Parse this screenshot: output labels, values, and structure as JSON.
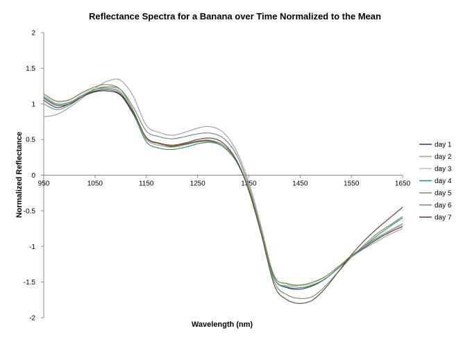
{
  "chart_data": {
    "type": "line",
    "title": "Reflectance Spectra for a Banana over Time Normalized to the Mean",
    "xlabel": "Wavelength (nm)",
    "ylabel": "Normalized Reflectance",
    "xlim": [
      950,
      1650
    ],
    "ylim": [
      -2,
      2
    ],
    "xticks": [
      950,
      1050,
      1150,
      1250,
      1350,
      1450,
      1550,
      1650
    ],
    "yticks": [
      -2,
      -1.5,
      -1,
      -0.5,
      0,
      0.5,
      1,
      1.5,
      2
    ],
    "x_tick_labels": [
      "950",
      "1050",
      "1150",
      "1250",
      "1350",
      "1450",
      "1550",
      "1650"
    ],
    "y_tick_labels": [
      "-2",
      "-1.5",
      "-1",
      "-0.5",
      "0",
      "0.5",
      "1",
      "1.5",
      "2"
    ],
    "grid": false,
    "legend_position": "right",
    "x": [
      950,
      975,
      1000,
      1025,
      1050,
      1075,
      1100,
      1125,
      1150,
      1175,
      1200,
      1225,
      1250,
      1275,
      1300,
      1325,
      1350,
      1375,
      1400,
      1425,
      1450,
      1475,
      1500,
      1525,
      1550,
      1575,
      1600,
      1625,
      1650
    ],
    "series": [
      {
        "name": "day 1",
        "color": "#3a2d5c",
        "values": [
          1.05,
          0.95,
          1.0,
          1.1,
          1.17,
          1.18,
          1.12,
          0.85,
          0.5,
          0.42,
          0.4,
          0.43,
          0.47,
          0.48,
          0.4,
          0.2,
          -0.2,
          -0.8,
          -1.45,
          -1.58,
          -1.6,
          -1.55,
          -1.45,
          -1.3,
          -1.15,
          -1.02,
          -0.9,
          -0.8,
          -0.72
        ]
      },
      {
        "name": "day 2",
        "color": "#9a9ab0",
        "values": [
          0.82,
          0.85,
          0.95,
          1.08,
          1.22,
          1.32,
          1.33,
          1.1,
          0.7,
          0.6,
          0.56,
          0.6,
          0.66,
          0.68,
          0.6,
          0.35,
          -0.1,
          -0.75,
          -1.45,
          -1.55,
          -1.55,
          -1.5,
          -1.42,
          -1.28,
          -1.15,
          -1.03,
          -0.93,
          -0.83,
          -0.75
        ]
      },
      {
        "name": "day 3",
        "color": "#b8c8a8",
        "values": [
          1.12,
          1.03,
          1.05,
          1.15,
          1.22,
          1.24,
          1.17,
          0.88,
          0.5,
          0.42,
          0.39,
          0.42,
          0.46,
          0.47,
          0.4,
          0.22,
          -0.18,
          -0.78,
          -1.42,
          -1.53,
          -1.55,
          -1.52,
          -1.42,
          -1.28,
          -1.13,
          -1.0,
          -0.88,
          -0.78,
          -0.7
        ]
      },
      {
        "name": "day 4",
        "color": "#1f8a7a",
        "values": [
          1.1,
          1.0,
          1.02,
          1.12,
          1.2,
          1.22,
          1.15,
          0.86,
          0.47,
          0.38,
          0.36,
          0.39,
          0.44,
          0.46,
          0.4,
          0.2,
          -0.2,
          -0.8,
          -1.45,
          -1.57,
          -1.58,
          -1.54,
          -1.45,
          -1.3,
          -1.15,
          -1.0,
          -0.85,
          -0.72,
          -0.6
        ]
      },
      {
        "name": "day 5",
        "color": "#8a8a40",
        "values": [
          1.14,
          1.04,
          1.06,
          1.16,
          1.24,
          1.27,
          1.2,
          0.9,
          0.52,
          0.44,
          0.41,
          0.44,
          0.48,
          0.49,
          0.42,
          0.22,
          -0.2,
          -0.8,
          -1.42,
          -1.52,
          -1.54,
          -1.5,
          -1.42,
          -1.28,
          -1.13,
          -1.0,
          -0.88,
          -0.78,
          -0.68
        ]
      },
      {
        "name": "day 6",
        "color": "#6a8a70",
        "values": [
          1.0,
          0.92,
          0.98,
          1.1,
          1.2,
          1.24,
          1.2,
          0.95,
          0.62,
          0.54,
          0.51,
          0.54,
          0.58,
          0.59,
          0.52,
          0.3,
          -0.15,
          -0.8,
          -1.5,
          -1.68,
          -1.73,
          -1.7,
          -1.55,
          -1.35,
          -1.15,
          -0.98,
          -0.82,
          -0.7,
          -0.58
        ]
      },
      {
        "name": "day 7",
        "color": "#5e3a30",
        "values": [
          1.08,
          0.98,
          1.0,
          1.1,
          1.18,
          1.2,
          1.13,
          0.88,
          0.53,
          0.45,
          0.42,
          0.45,
          0.5,
          0.52,
          0.45,
          0.22,
          -0.22,
          -0.85,
          -1.55,
          -1.75,
          -1.8,
          -1.75,
          -1.58,
          -1.35,
          -1.12,
          -0.92,
          -0.75,
          -0.6,
          -0.45
        ]
      }
    ]
  }
}
